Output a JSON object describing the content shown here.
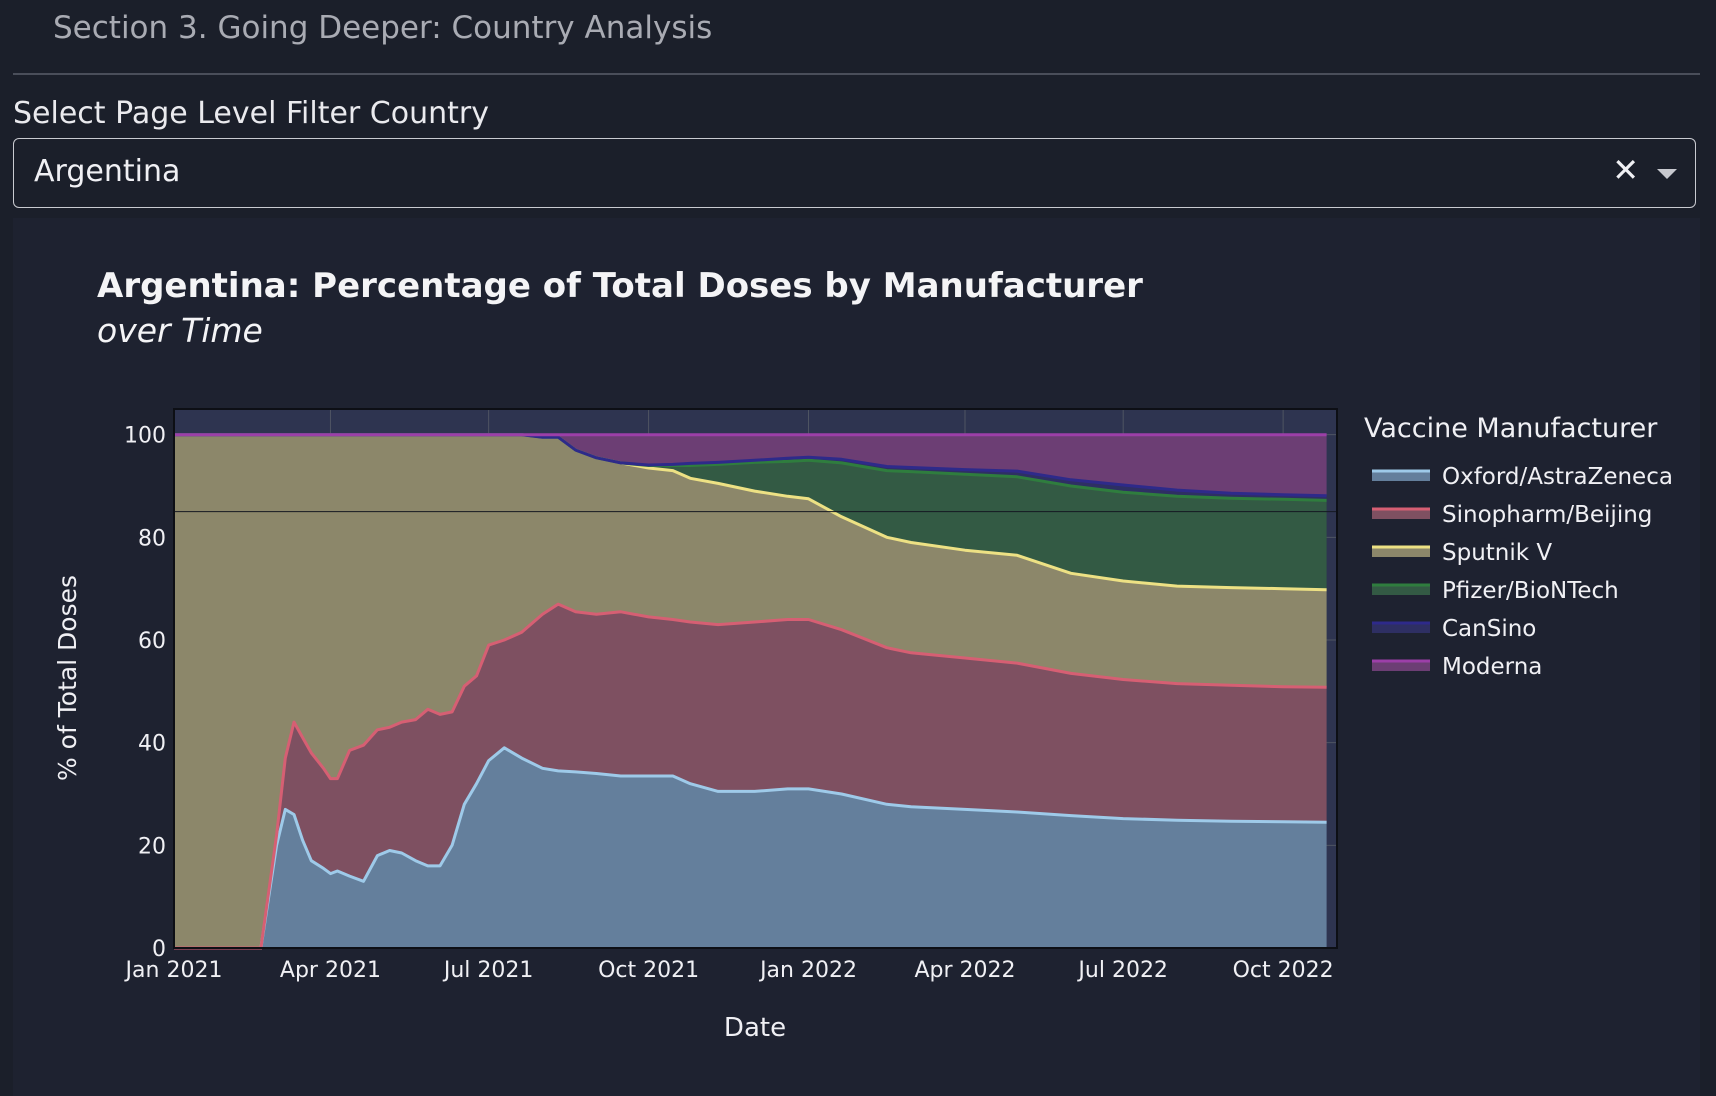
{
  "section": {
    "title": "Section 3. Going Deeper: Country Analysis"
  },
  "filter": {
    "label": "Select Page Level Filter Country",
    "selected": "Argentina",
    "clear_glyph": "✕"
  },
  "chart_data": {
    "type": "area",
    "stacked": true,
    "title": "Argentina: Percentage of Total Doses by Manufacturer",
    "subtitle": "over Time",
    "xlabel": "Date",
    "ylabel": "% of Total Doses",
    "x_ticks": [
      "Jan 2021",
      "Apr 2021",
      "Jul 2021",
      "Oct 2021",
      "Jan 2022",
      "Apr 2022",
      "Jul 2022",
      "Oct 2022"
    ],
    "x_tick_dates": [
      "2021-01-01",
      "2021-04-01",
      "2021-07-01",
      "2021-10-01",
      "2022-01-01",
      "2022-04-01",
      "2022-07-01",
      "2022-10-01"
    ],
    "xlim": [
      "2021-01-01",
      "2022-11-01"
    ],
    "y_ticks": [
      0,
      20,
      40,
      60,
      80,
      100
    ],
    "ylim": [
      0,
      105
    ],
    "reference_line_y": 85,
    "grid": true,
    "legend_title": "Vaccine Manufacturer",
    "legend_position": "right",
    "series": [
      {
        "name": "Oxford/AstraZeneca",
        "color": "#9ecae9",
        "fill": "#647f9c"
      },
      {
        "name": "Sinopharm/Beijing",
        "color": "#d65f73",
        "fill": "#7e5061"
      },
      {
        "name": "Sputnik V",
        "color": "#ede184",
        "fill": "#8c876a"
      },
      {
        "name": "Pfizer/BioNTech",
        "color": "#2f7d3e",
        "fill": "#335a44"
      },
      {
        "name": "CanSino",
        "color": "#2e2a8a",
        "fill": "#2e2f63"
      },
      {
        "name": "Moderna",
        "color": "#9c3fa8",
        "fill": "#6c3e74"
      }
    ],
    "cumulative": [
      {
        "x": "2021-01-01",
        "y": [
          0,
          0,
          100,
          100,
          100,
          100
        ]
      },
      {
        "x": "2021-02-15",
        "y": [
          0,
          0,
          100,
          100,
          100,
          100
        ]
      },
      {
        "x": "2021-02-20",
        "y": [
          0,
          0,
          100,
          100,
          100,
          100
        ]
      },
      {
        "x": "2021-03-01",
        "y": [
          20,
          22,
          100,
          100,
          100,
          100
        ]
      },
      {
        "x": "2021-03-06",
        "y": [
          27,
          37,
          100,
          100,
          100,
          100
        ]
      },
      {
        "x": "2021-03-11",
        "y": [
          26,
          44,
          100,
          100,
          100,
          100
        ]
      },
      {
        "x": "2021-03-16",
        "y": [
          21,
          41,
          100,
          100,
          100,
          100
        ]
      },
      {
        "x": "2021-03-21",
        "y": [
          17,
          38,
          100,
          100,
          100,
          100
        ]
      },
      {
        "x": "2021-03-28",
        "y": [
          15.5,
          35,
          100,
          100,
          100,
          100
        ]
      },
      {
        "x": "2021-04-01",
        "y": [
          14.5,
          33,
          100,
          100,
          100,
          100
        ]
      },
      {
        "x": "2021-04-05",
        "y": [
          15,
          33,
          100,
          100,
          100,
          100
        ]
      },
      {
        "x": "2021-04-12",
        "y": [
          14,
          38.5,
          100,
          100,
          100,
          100
        ]
      },
      {
        "x": "2021-04-20",
        "y": [
          13,
          39.5,
          100,
          100,
          100,
          100
        ]
      },
      {
        "x": "2021-04-28",
        "y": [
          18,
          42.5,
          100,
          100,
          100,
          100
        ]
      },
      {
        "x": "2021-05-05",
        "y": [
          19,
          43,
          100,
          100,
          100,
          100
        ]
      },
      {
        "x": "2021-05-12",
        "y": [
          18.5,
          44,
          100,
          100,
          100,
          100
        ]
      },
      {
        "x": "2021-05-20",
        "y": [
          17,
          44.5,
          100,
          100,
          100,
          100
        ]
      },
      {
        "x": "2021-05-27",
        "y": [
          16,
          46.5,
          100,
          100,
          100,
          100
        ]
      },
      {
        "x": "2021-06-03",
        "y": [
          16,
          45.5,
          100,
          100,
          100,
          100
        ]
      },
      {
        "x": "2021-06-10",
        "y": [
          20,
          46,
          100,
          100,
          100,
          100
        ]
      },
      {
        "x": "2021-06-17",
        "y": [
          28,
          51,
          100,
          100,
          100,
          100
        ]
      },
      {
        "x": "2021-06-24",
        "y": [
          32,
          53,
          100,
          100,
          100,
          100
        ]
      },
      {
        "x": "2021-07-01",
        "y": [
          36.5,
          59,
          100,
          100,
          100,
          100
        ]
      },
      {
        "x": "2021-07-10",
        "y": [
          39,
          60,
          100,
          100,
          100,
          100
        ]
      },
      {
        "x": "2021-07-20",
        "y": [
          37,
          61.5,
          100,
          100,
          100,
          100
        ]
      },
      {
        "x": "2021-08-01",
        "y": [
          35,
          65,
          99.5,
          99.5,
          99.5,
          100
        ]
      },
      {
        "x": "2021-08-10",
        "y": [
          34.5,
          67,
          99.5,
          99.5,
          99.5,
          100
        ]
      },
      {
        "x": "2021-08-20",
        "y": [
          34.3,
          65.5,
          97,
          97,
          97,
          100
        ]
      },
      {
        "x": "2021-09-01",
        "y": [
          34,
          65,
          95.5,
          95.5,
          95.5,
          100
        ]
      },
      {
        "x": "2021-09-15",
        "y": [
          33.5,
          65.5,
          94.5,
          94.5,
          94.5,
          100
        ]
      },
      {
        "x": "2021-10-01",
        "y": [
          33.5,
          64.5,
          93.5,
          94,
          94.1,
          100
        ]
      },
      {
        "x": "2021-10-15",
        "y": [
          33.5,
          64,
          93,
          94,
          94.2,
          100
        ]
      },
      {
        "x": "2021-10-25",
        "y": [
          32,
          63.5,
          91.5,
          94,
          94.4,
          100
        ]
      },
      {
        "x": "2021-11-10",
        "y": [
          30.5,
          63,
          90.5,
          94.2,
          94.6,
          100
        ]
      },
      {
        "x": "2021-12-01",
        "y": [
          30.5,
          63.5,
          89,
          94.6,
          95,
          100
        ]
      },
      {
        "x": "2021-12-20",
        "y": [
          31,
          64,
          88,
          94.8,
          95.4,
          100
        ]
      },
      {
        "x": "2022-01-01",
        "y": [
          31,
          64,
          87.5,
          95,
          95.6,
          100
        ]
      },
      {
        "x": "2022-01-20",
        "y": [
          30,
          62,
          84,
          94.5,
          95.2,
          100
        ]
      },
      {
        "x": "2022-02-15",
        "y": [
          28,
          58.5,
          80,
          93,
          93.8,
          100
        ]
      },
      {
        "x": "2022-03-01",
        "y": [
          27.5,
          57.5,
          79,
          92.8,
          93.6,
          100
        ]
      },
      {
        "x": "2022-04-01",
        "y": [
          27,
          56.5,
          77.5,
          92.3,
          93.2,
          100
        ]
      },
      {
        "x": "2022-05-01",
        "y": [
          26.5,
          55.5,
          76.5,
          91.8,
          92.9,
          100
        ]
      },
      {
        "x": "2022-06-01",
        "y": [
          25.8,
          53.5,
          73,
          90,
          91.2,
          100
        ]
      },
      {
        "x": "2022-07-01",
        "y": [
          25.2,
          52.3,
          71.5,
          88.8,
          90.2,
          100
        ]
      },
      {
        "x": "2022-08-01",
        "y": [
          24.9,
          51.5,
          70.5,
          88,
          89.2,
          100
        ]
      },
      {
        "x": "2022-09-01",
        "y": [
          24.7,
          51.2,
          70.2,
          87.6,
          88.6,
          100
        ]
      },
      {
        "x": "2022-10-01",
        "y": [
          24.6,
          50.9,
          70,
          87.4,
          88.3,
          100
        ]
      },
      {
        "x": "2022-10-26",
        "y": [
          24.5,
          50.8,
          69.8,
          87.2,
          88.1,
          100
        ]
      }
    ]
  }
}
